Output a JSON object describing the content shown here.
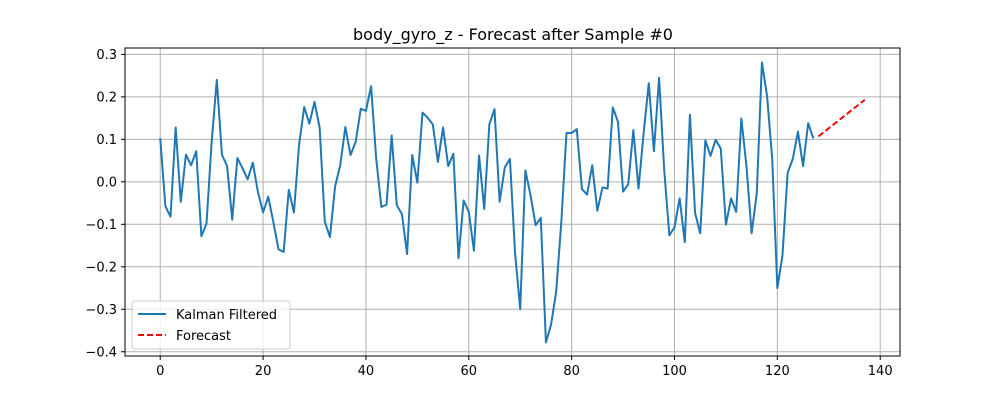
{
  "chart_data": {
    "type": "line",
    "title": "body_gyro_z - Forecast after Sample #0",
    "xlabel": "",
    "ylabel": "",
    "xlim": [
      -6.85,
      143.85
    ],
    "ylim": [
      -0.41,
      0.315
    ],
    "xticks": [
      0,
      20,
      40,
      60,
      80,
      100,
      120,
      140
    ],
    "yticks": [
      -0.4,
      -0.3,
      -0.2,
      -0.1,
      0.0,
      0.1,
      0.2,
      0.3
    ],
    "xtick_labels": [
      "0",
      "20",
      "40",
      "60",
      "80",
      "100",
      "120",
      "140"
    ],
    "ytick_labels": [
      "−0.4",
      "−0.3",
      "−0.2",
      "−0.1",
      "0.0",
      "0.1",
      "0.2",
      "0.3"
    ],
    "grid": true,
    "legend_position": "lower-left",
    "series": [
      {
        "name": "Kalman Filtered",
        "color": "#1f77b4",
        "style": "solid",
        "x_start": 0,
        "values": [
          0.103,
          -0.057,
          -0.082,
          0.128,
          -0.047,
          0.064,
          0.039,
          0.072,
          -0.128,
          -0.098,
          0.094,
          0.24,
          0.064,
          0.037,
          -0.089,
          0.056,
          0.032,
          0.006,
          0.045,
          -0.024,
          -0.072,
          -0.035,
          -0.095,
          -0.159,
          -0.165,
          -0.019,
          -0.072,
          0.087,
          0.176,
          0.137,
          0.188,
          0.127,
          -0.094,
          -0.13,
          -0.011,
          0.039,
          0.129,
          0.063,
          0.094,
          0.172,
          0.167,
          0.225,
          0.054,
          -0.059,
          -0.054,
          0.109,
          -0.055,
          -0.076,
          -0.17,
          0.063,
          -0.002,
          0.163,
          0.151,
          0.135,
          0.047,
          0.128,
          0.037,
          0.066,
          -0.18,
          -0.044,
          -0.071,
          -0.162,
          0.062,
          -0.064,
          0.135,
          0.171,
          -0.047,
          0.034,
          0.054,
          -0.168,
          -0.3,
          0.027,
          -0.031,
          -0.102,
          -0.085,
          -0.378,
          -0.336,
          -0.258,
          -0.093,
          0.115,
          0.115,
          0.124,
          -0.017,
          -0.03,
          0.039,
          -0.068,
          -0.013,
          -0.016,
          0.175,
          0.142,
          -0.023,
          -0.006,
          0.122,
          -0.016,
          0.115,
          0.232,
          0.072,
          0.245,
          0.028,
          -0.126,
          -0.107,
          -0.039,
          -0.142,
          0.158,
          -0.073,
          -0.121,
          0.098,
          0.061,
          0.099,
          0.078,
          -0.101,
          -0.039,
          -0.071,
          0.149,
          0.036,
          -0.121,
          -0.027,
          0.281,
          0.202,
          0.054,
          -0.25,
          -0.173,
          0.021,
          0.054,
          0.118,
          0.037,
          0.138,
          0.102
        ]
      },
      {
        "name": "Forecast",
        "color": "#ff0000",
        "style": "dashed",
        "x": [
          128,
          137
        ],
        "values": [
          0.107,
          0.193
        ]
      }
    ]
  }
}
